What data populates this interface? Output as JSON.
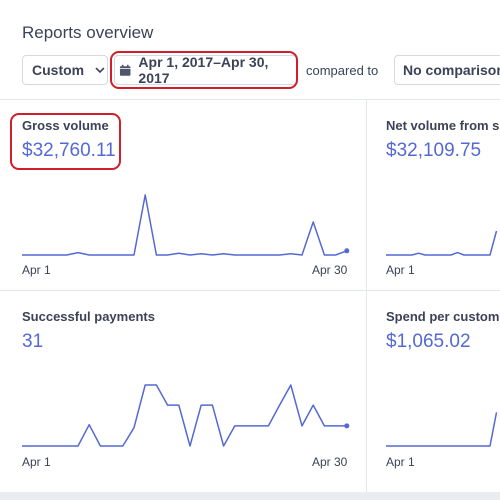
{
  "page": {
    "title": "Reports overview"
  },
  "toolbar": {
    "range_label": "Custom",
    "date_range": "Apr 1, 2017–Apr 30, 2017",
    "compared_to": "compared to",
    "comparison": "No comparison"
  },
  "cards": [
    {
      "label": "Gross volume",
      "value": "$32,760.11",
      "start": "Apr 1",
      "end": "Apr 30"
    },
    {
      "label": "Net volume from s",
      "value": "$32,109.75",
      "start": "Apr 1"
    },
    {
      "label": "Successful payments",
      "value": "31",
      "start": "Apr 1",
      "end": "Apr 30"
    },
    {
      "label": "Spend per custom",
      "value": "$1,065.02",
      "start": "Apr 1"
    }
  ],
  "colors": {
    "accent": "#5469d4",
    "highlight": "#d01e2a"
  },
  "chart_data": [
    {
      "type": "line",
      "title": "Gross volume",
      "x_range": [
        "Apr 1",
        "Apr 30"
      ],
      "series": [
        {
          "values": [
            0,
            0,
            0,
            0,
            0,
            0.04,
            0,
            0,
            0,
            0,
            0,
            1,
            0,
            0,
            0.03,
            0,
            0.02,
            0,
            0.02,
            0,
            0,
            0,
            0,
            0,
            0.02,
            0,
            0.55,
            0,
            0,
            0.07
          ]
        }
      ],
      "ylim": [
        0,
        1
      ]
    },
    {
      "type": "line",
      "title": "Net volume from s",
      "x_range": [
        "Apr 1"
      ],
      "series": [
        {
          "values": [
            0,
            0,
            0,
            0,
            0,
            0.03,
            0,
            0,
            0,
            0,
            0,
            0.04,
            0,
            0,
            0,
            0,
            0,
            0.4
          ]
        }
      ],
      "ylim": [
        0,
        1
      ]
    },
    {
      "type": "line",
      "title": "Successful payments",
      "x_range": [
        "Apr 1",
        "Apr 30"
      ],
      "series": [
        {
          "values": [
            0,
            0,
            0,
            0,
            0,
            0,
            0.35,
            0,
            0,
            0,
            0.3,
            1,
            1,
            0.67,
            0.67,
            0,
            0.67,
            0.67,
            0,
            0.33,
            0.33,
            0.33,
            0.33,
            0.67,
            1,
            0.33,
            0.67,
            0.33,
            0.33,
            0.33
          ]
        }
      ],
      "ylim": [
        0,
        1
      ]
    },
    {
      "type": "line",
      "title": "Spend per custom",
      "x_range": [
        "Apr 1"
      ],
      "series": [
        {
          "values": [
            0,
            0,
            0,
            0,
            0,
            0,
            0,
            0,
            0,
            0,
            0,
            0,
            0,
            0,
            0,
            0,
            0,
            0.55
          ]
        }
      ],
      "ylim": [
        0,
        1
      ]
    }
  ]
}
